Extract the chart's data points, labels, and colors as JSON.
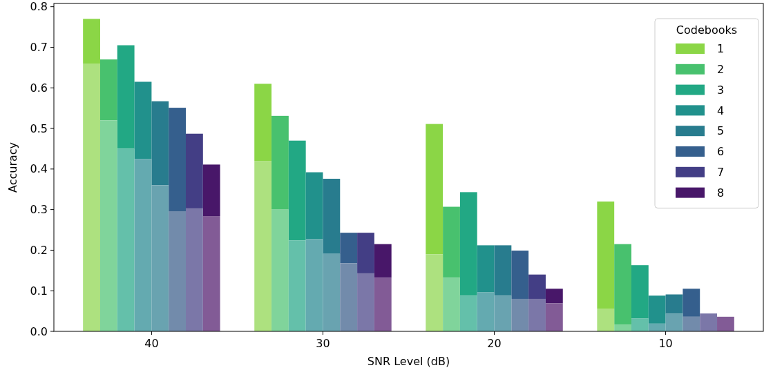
{
  "chart_data": {
    "type": "bar",
    "xlabel": "SNR Level (dB)",
    "ylabel": "Accuracy",
    "legend_title": "Codebooks",
    "categories": [
      "40",
      "30",
      "20",
      "10"
    ],
    "ylim": [
      0,
      0.808
    ],
    "yticks": [
      {
        "value": 0,
        "label": "0.0"
      },
      {
        "value": 0.1,
        "label": "0.1"
      },
      {
        "value": 0.2,
        "label": "0.2"
      },
      {
        "value": 0.3,
        "label": "0.3"
      },
      {
        "value": 0.4,
        "label": "0.4"
      },
      {
        "value": 0.5,
        "label": "0.5"
      },
      {
        "value": 0.6,
        "label": "0.6"
      },
      {
        "value": 0.7,
        "label": "0.7"
      },
      {
        "value": 0.8,
        "label": "0.8"
      }
    ],
    "legend": "top right",
    "series": [
      {
        "name": "1",
        "color": "#8bd646",
        "base": [
          0.66,
          0.42,
          0.19,
          0.056
        ],
        "values": [
          0.11,
          0.19,
          0.321,
          0.264
        ]
      },
      {
        "name": "2",
        "color": "#48c16e",
        "base": [
          0.52,
          0.3,
          0.132,
          0.016
        ],
        "values": [
          0.15,
          0.231,
          0.175,
          0.199
        ]
      },
      {
        "name": "3",
        "color": "#22a884",
        "base": [
          0.45,
          0.224,
          0.088,
          0.032
        ],
        "values": [
          0.255,
          0.246,
          0.255,
          0.131
        ]
      },
      {
        "name": "4",
        "color": "#21918c",
        "base": [
          0.425,
          0.227,
          0.096,
          0.019
        ],
        "values": [
          0.19,
          0.165,
          0.116,
          0.069
        ]
      },
      {
        "name": "5",
        "color": "#287c8e",
        "base": [
          0.36,
          0.191,
          0.088,
          0.044
        ],
        "values": [
          0.207,
          0.185,
          0.124,
          0.047
        ]
      },
      {
        "name": "6",
        "color": "#355f8d",
        "base": [
          0.296,
          0.168,
          0.08,
          0.036
        ],
        "values": [
          0.255,
          0.075,
          0.119,
          0.069
        ]
      },
      {
        "name": "7",
        "color": "#433e85",
        "base": [
          0.303,
          0.143,
          0.08,
          null
        ],
        "values": [
          0.184,
          0.1,
          0.06,
          null
        ]
      },
      {
        "name": "8",
        "color": "#481769",
        "base": [
          0.284,
          0.132,
          0.069,
          null
        ],
        "values": [
          0.127,
          0.083,
          0.036,
          null
        ]
      },
      {
        "color": "#ade17f",
        "values": [
          0.66,
          0.42,
          0.19,
          0.056
        ]
      },
      {
        "color": "#80d49b",
        "values": [
          0.52,
          0.3,
          0.132,
          0.016
        ]
      },
      {
        "color": "#64c0aa",
        "values": [
          0.45,
          0.224,
          0.088,
          0.032
        ]
      },
      {
        "color": "#64aab0",
        "values": [
          0.425,
          0.227,
          0.096,
          0.019
        ]
      },
      {
        "color": "#69a3b0",
        "values": [
          0.36,
          0.191,
          0.088,
          0.044
        ]
      },
      {
        "color": "#728bab",
        "values": [
          0.296,
          0.168,
          0.08,
          0.036
        ]
      },
      {
        "color": "#7b77a8",
        "values": [
          0.303,
          0.143,
          0.08,
          0.044
        ]
      },
      {
        "color": "#825b96",
        "values": [
          0.284,
          0.132,
          0.069,
          0.036
        ]
      }
    ]
  }
}
